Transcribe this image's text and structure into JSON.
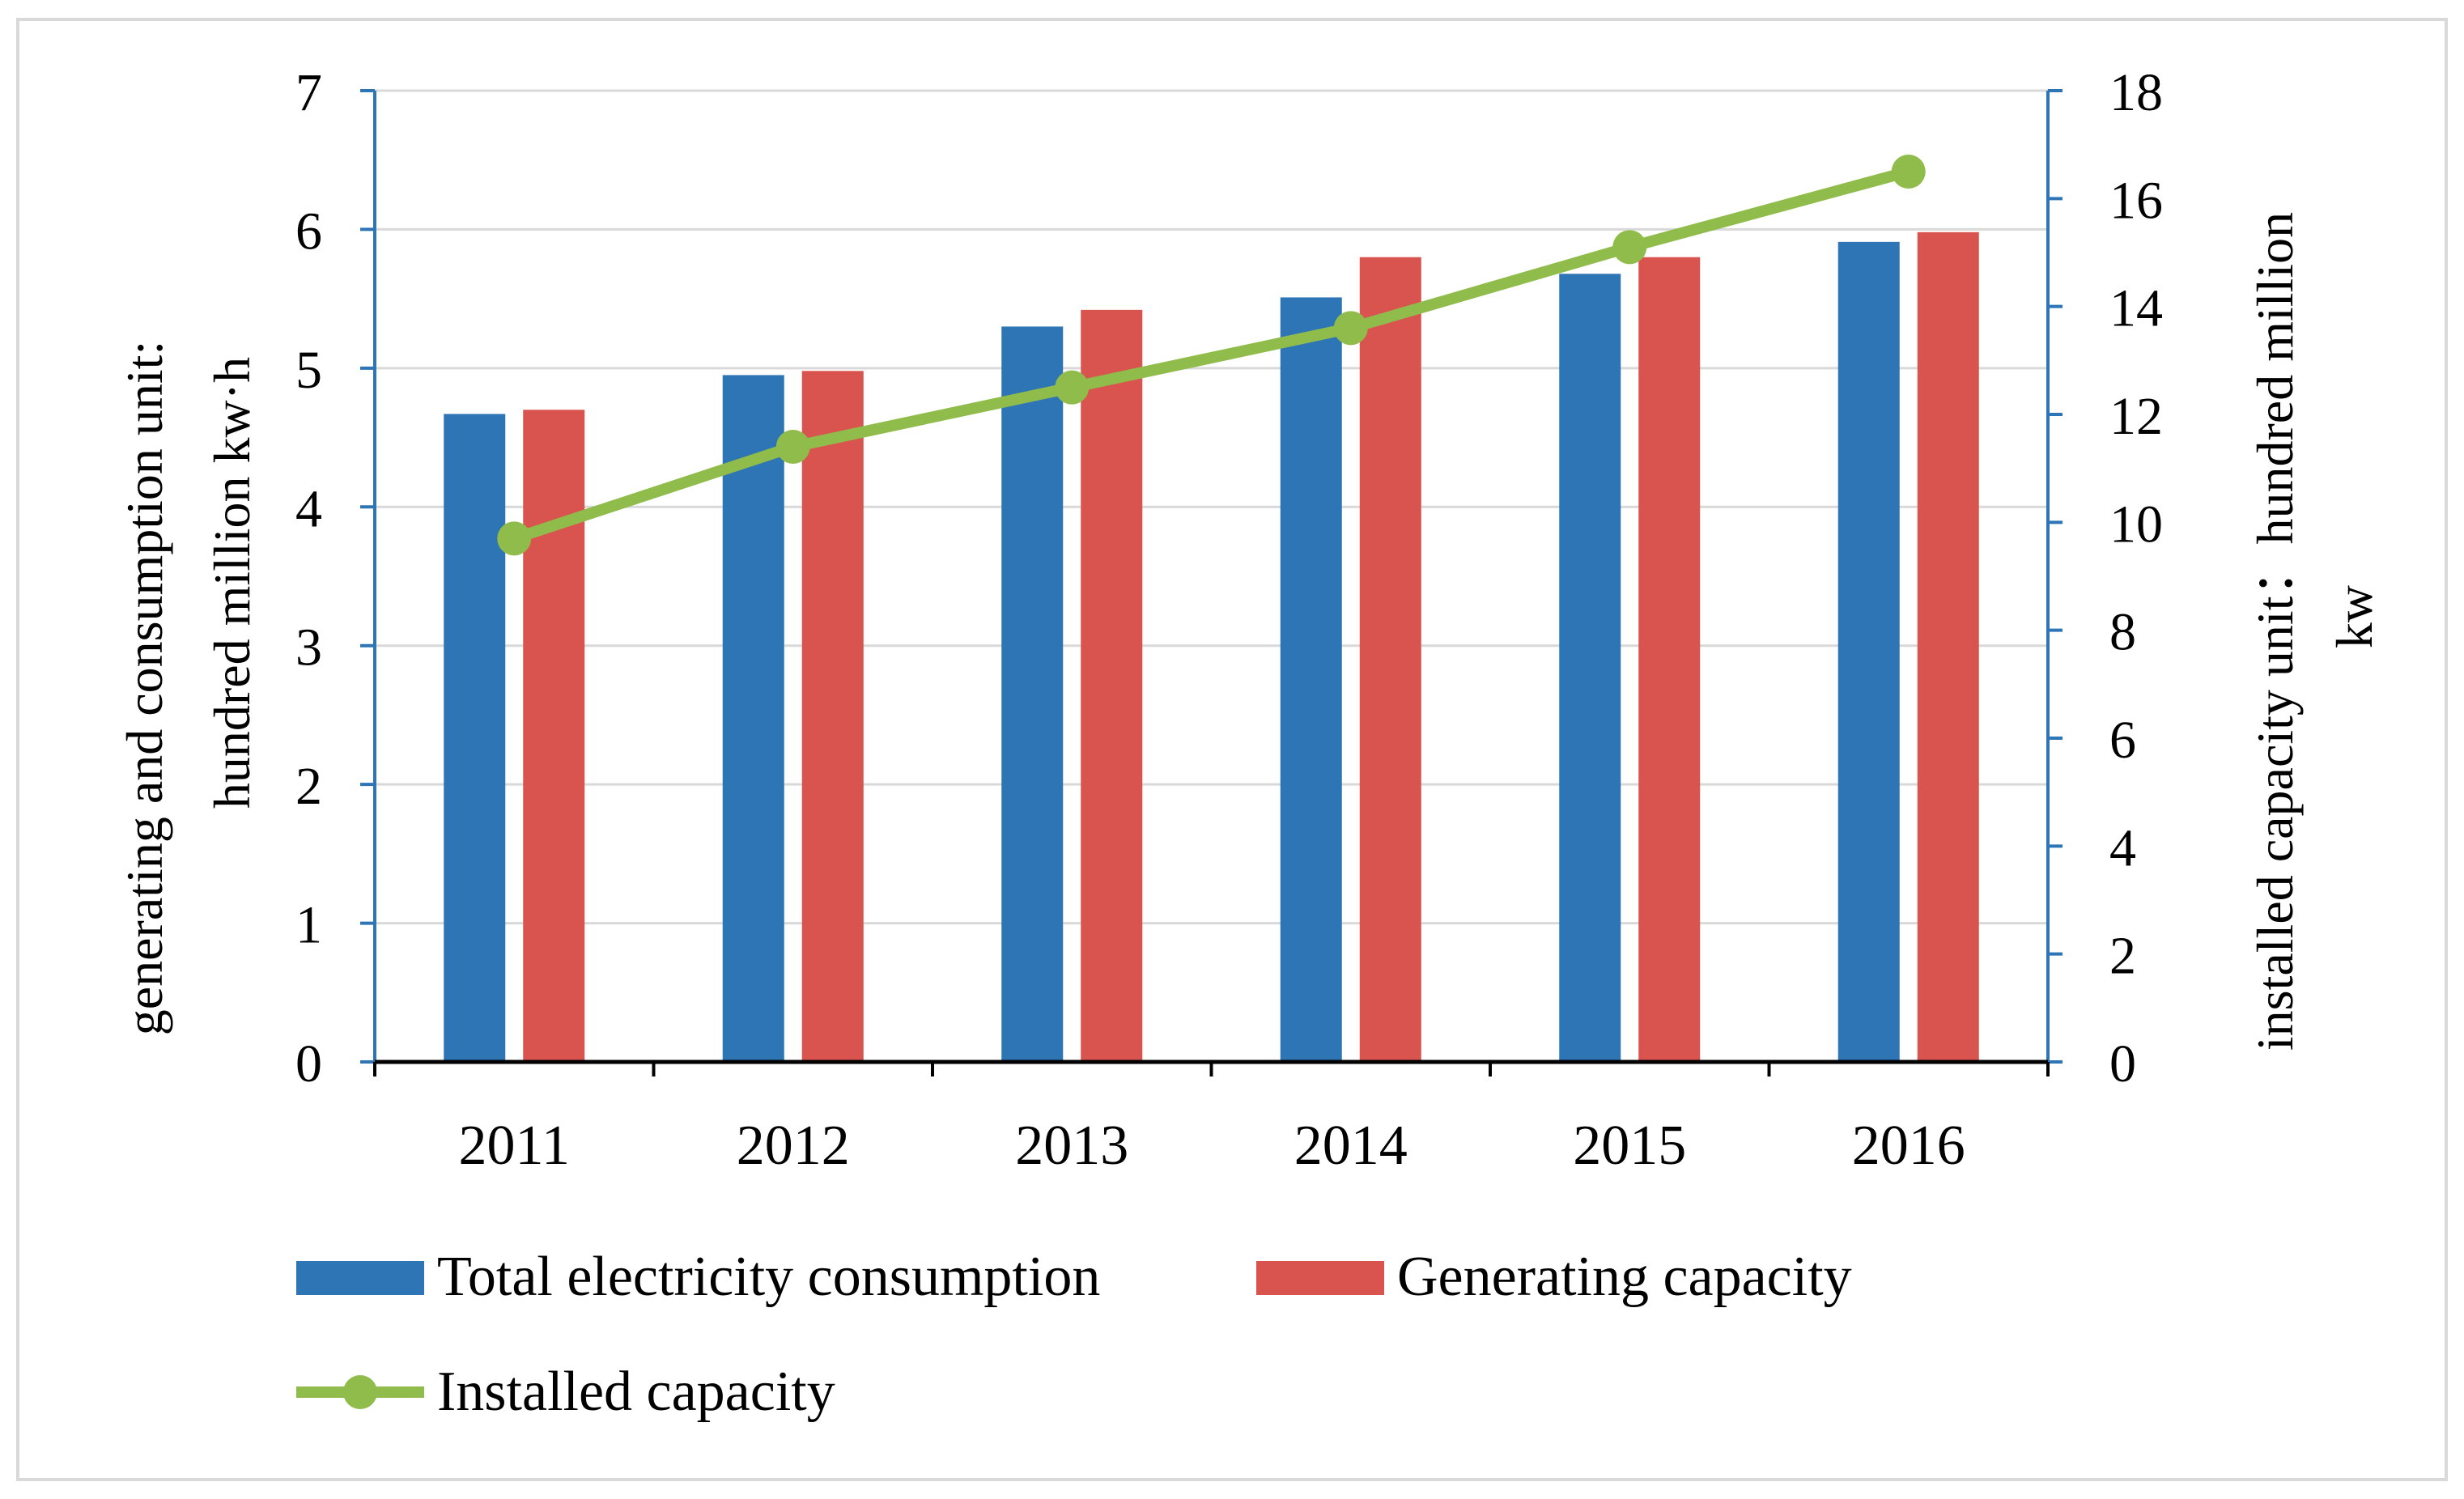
{
  "chart_data": {
    "type": "bar",
    "title": "",
    "categories": [
      "2011",
      "2012",
      "2013",
      "2014",
      "2015",
      "2016"
    ],
    "series": [
      {
        "name": "Total electricity consumption",
        "type": "bar",
        "axis": "left",
        "color": "#2e75b6",
        "values": [
          4.67,
          4.95,
          5.3,
          5.51,
          5.68,
          5.91
        ]
      },
      {
        "name": "Generating capacity",
        "type": "bar",
        "axis": "left",
        "color": "#d9534f",
        "values": [
          4.7,
          4.98,
          5.42,
          5.8,
          5.8,
          5.98
        ]
      },
      {
        "name": "Installed capacity",
        "type": "line",
        "axis": "right",
        "color": "#8fbc4a",
        "values": [
          9.7,
          11.4,
          12.5,
          13.6,
          15.1,
          16.5
        ]
      }
    ],
    "y_left": {
      "label_line1": "generating and consumption unit:",
      "label_line2": "hundred million kw·h",
      "ylim": [
        0,
        7
      ],
      "ticks": [
        "0",
        "1",
        "2",
        "3",
        "4",
        "5",
        "6",
        "7"
      ]
    },
    "y_right": {
      "label_line1": "installed capacity unit：hundred million",
      "label_line2": "kw",
      "ylim": [
        0,
        18
      ],
      "ticks": [
        "0",
        "2",
        "4",
        "6",
        "8",
        "10",
        "12",
        "14",
        "16",
        "18"
      ]
    },
    "grid": true,
    "legend_position": "bottom"
  }
}
